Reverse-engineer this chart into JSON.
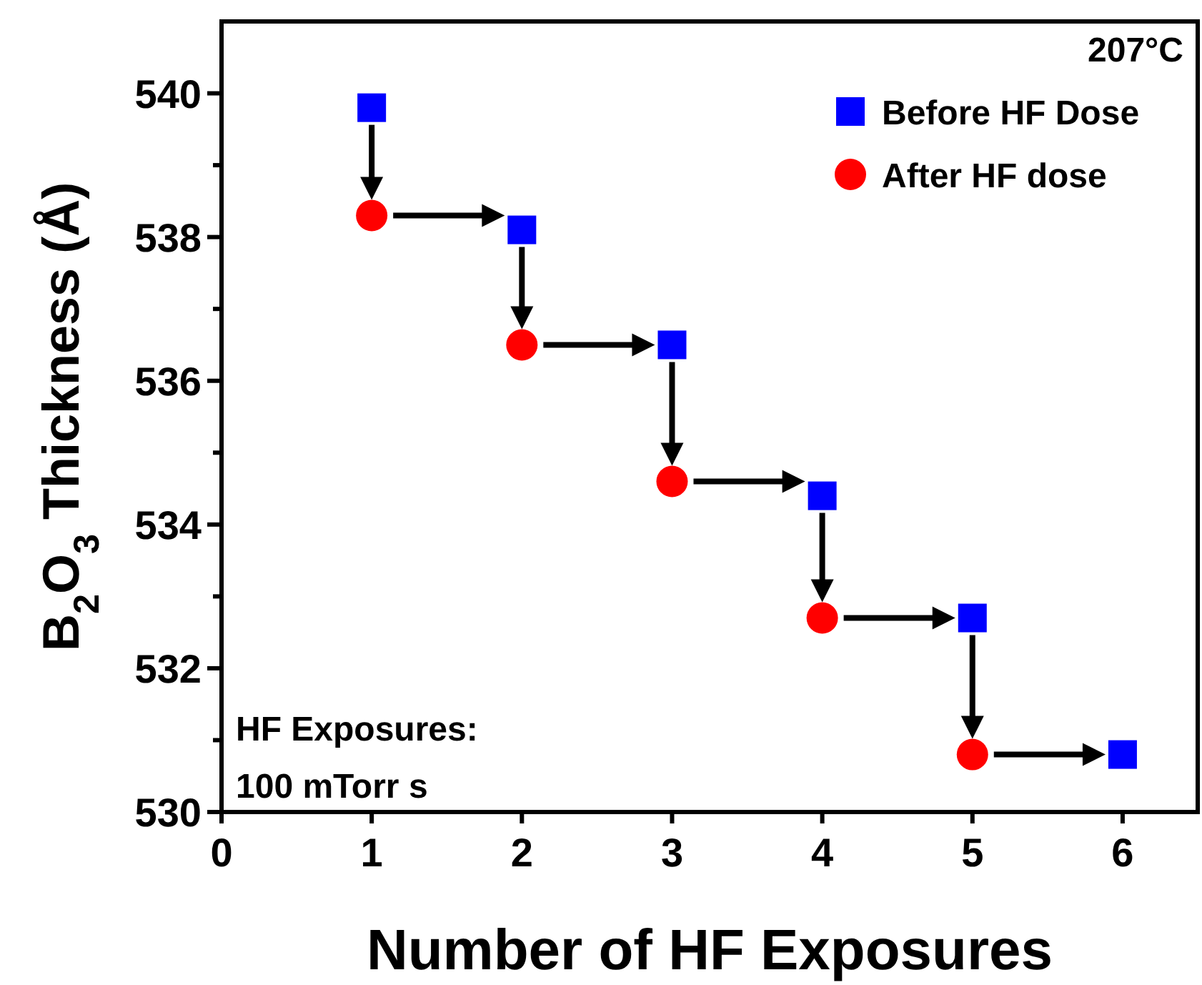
{
  "chart_data": {
    "type": "scatter",
    "xlabel": "Number of HF Exposures",
    "ylabel": "B$_{2}$O$_{3}$ Thickness (Å)",
    "legend_title": "207°C",
    "xlim": [
      0,
      6.5
    ],
    "xticks": [
      0,
      1,
      2,
      3,
      4,
      5,
      6
    ],
    "ylim": [
      530,
      541
    ],
    "yticks": [
      530,
      {
        "value": 531,
        "label": null
      },
      532,
      {
        "value": 533,
        "label": null
      },
      534,
      {
        "value": 535,
        "label": null
      },
      536,
      {
        "value": 537,
        "label": null
      },
      538,
      {
        "value": 539,
        "label": null
      },
      540
    ],
    "series": [
      {
        "name": "Before HF Dose",
        "color": "#0000ff",
        "marker": "square",
        "x": [
          1,
          2,
          3,
          4,
          5,
          6
        ],
        "values": [
          539.8,
          538.1,
          536.5,
          534.4,
          532.7,
          530.8
        ]
      },
      {
        "name": "After HF dose",
        "color": "#ff0000",
        "marker": "circle",
        "x": [
          1,
          2,
          3,
          4,
          5
        ],
        "values": [
          538.3,
          536.5,
          534.6,
          532.7,
          530.8
        ]
      }
    ],
    "legend": "top right",
    "grid": false,
    "annotations": [
      "HF Exposures:",
      "100 mTorr s"
    ]
  }
}
